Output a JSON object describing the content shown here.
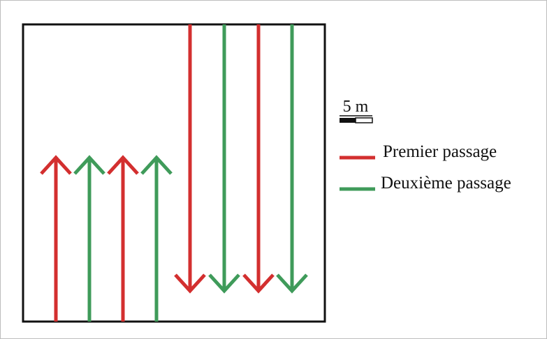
{
  "colors": {
    "first_pass": "#d32f2f",
    "second_pass": "#3f9b5a",
    "border": "#111111"
  },
  "scale": {
    "label": "5 m"
  },
  "legend": {
    "items": [
      {
        "label": "Premier passage",
        "color": "#d32f2f"
      },
      {
        "label": "Deuxième passage",
        "color": "#3f9b5a"
      }
    ]
  },
  "arrows": {
    "upward": [
      "first_pass",
      "second_pass",
      "first_pass",
      "second_pass"
    ],
    "downward": [
      "first_pass",
      "second_pass",
      "first_pass",
      "second_pass"
    ]
  }
}
